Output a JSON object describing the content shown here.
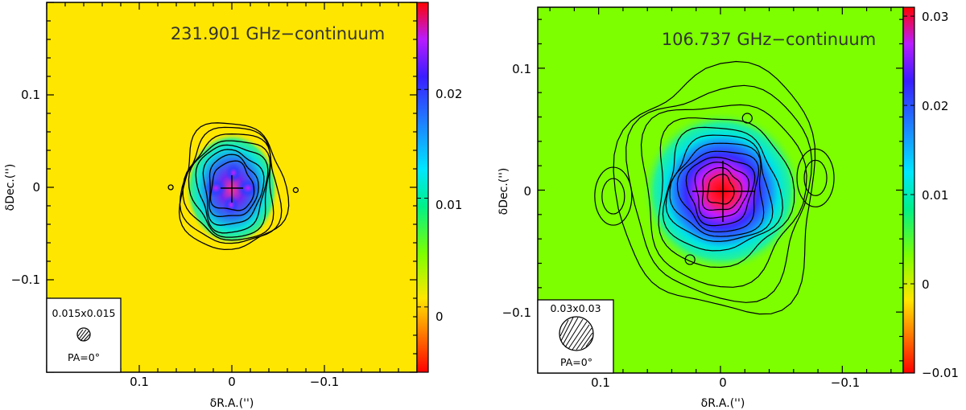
{
  "chart_data": [
    {
      "type": "heatmap",
      "title": "231.901 GHz−continuum",
      "xlabel": "δR.A.('')",
      "ylabel": "δDec.('')",
      "xlim": [
        0.2,
        -0.2
      ],
      "ylim": [
        -0.2,
        0.2
      ],
      "x_ticks": [
        0.1,
        0,
        -0.1
      ],
      "x_tick_labels": [
        "0.1",
        "0",
        "−0.1"
      ],
      "y_ticks": [
        -0.1,
        0,
        0.1
      ],
      "y_tick_labels": [
        "−0.1",
        "0",
        "0.1"
      ],
      "background_color": "#ffe600",
      "colorbar": {
        "range": [
          -0.006,
          0.028
        ],
        "ticks": [
          0,
          0.01,
          0.02
        ],
        "tick_labels": [
          "0",
          "0.01",
          "0.02"
        ]
      },
      "source": {
        "center": [
          0,
          0
        ],
        "peak": 0.028,
        "shape": "compact four-lobed core"
      },
      "components": [
        {
          "ra": 0.019,
          "dec": -0.001,
          "weight": 1.0
        },
        {
          "ra": -0.019,
          "dec": -0.001,
          "weight": 1.0
        },
        {
          "ra": 0.002,
          "dec": 0.017,
          "weight": 1.0
        },
        {
          "ra": 0.002,
          "dec": -0.019,
          "weight": 1.0
        }
      ],
      "isolated_contours": [
        {
          "ra": 0.066,
          "dec": 0.0
        },
        {
          "ra": -0.069,
          "dec": -0.003
        }
      ],
      "beam": {
        "label": "0.015x0.015",
        "pa_label": "PA=0°"
      }
    },
    {
      "type": "heatmap",
      "title": "106.737 GHz−continuum",
      "xlabel": "δR.A.('')",
      "ylabel": "δDec.('')",
      "xlim": [
        0.15,
        -0.15
      ],
      "ylim": [
        -0.15,
        0.15
      ],
      "x_ticks": [
        0.1,
        0,
        -0.1
      ],
      "x_tick_labels": [
        "0.1",
        "0",
        "−0.1"
      ],
      "y_ticks": [
        -0.1,
        0,
        0.1
      ],
      "y_tick_labels": [
        "−0.1",
        "0",
        "0.1"
      ],
      "background_color": "#7dff00",
      "colorbar": {
        "range": [
          -0.01,
          0.031
        ],
        "ticks": [
          -0.01,
          0,
          0.01,
          0.02,
          0.03
        ],
        "tick_labels": [
          "−0.01",
          "0",
          "0.01",
          "0.02",
          "0.03"
        ]
      },
      "source": {
        "center": [
          0,
          0
        ],
        "peak": 0.031,
        "shape": "extended diamond-shaped core"
      },
      "components": [
        {
          "ra": 0.0,
          "dec": 0.0,
          "weight": 1.0
        },
        {
          "ra": 0.024,
          "dec": -0.028,
          "weight": 0.3
        },
        {
          "ra": -0.024,
          "dec": 0.028,
          "weight": 0.3
        }
      ],
      "isolated_contours": [
        {
          "ra": 0.088,
          "dec": -0.005
        },
        {
          "ra": -0.078,
          "dec": 0.01
        },
        {
          "ra": -0.022,
          "dec": 0.059
        },
        {
          "ra": 0.025,
          "dec": -0.057
        }
      ],
      "beam": {
        "label": "0.03x0.03",
        "pa_label": "PA=0°"
      }
    }
  ]
}
